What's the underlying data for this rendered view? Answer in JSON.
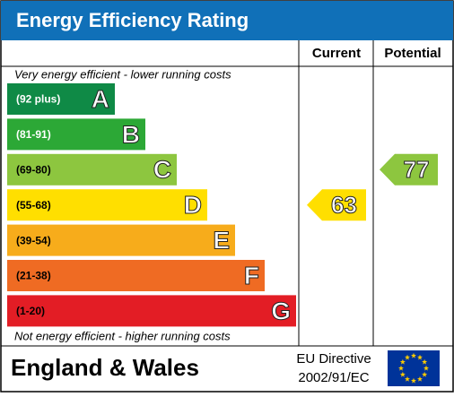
{
  "header": {
    "title": "Energy Efficiency Rating"
  },
  "columns": [
    "Current",
    "Potential"
  ],
  "top_note": "Very energy efficient - lower running costs",
  "bottom_note": "Not energy efficient - higher running costs",
  "bands": [
    {
      "range": "(92 plus)",
      "letter": "A",
      "color": "#0f8a46"
    },
    {
      "range": "(81-91)",
      "letter": "B",
      "color": "#2ca836"
    },
    {
      "range": "(69-80)",
      "letter": "C",
      "color": "#8dc63f"
    },
    {
      "range": "(55-68)",
      "letter": "D",
      "color": "#ffdf00"
    },
    {
      "range": "(39-54)",
      "letter": "E",
      "color": "#f7ac1b"
    },
    {
      "range": "(21-38)",
      "letter": "F",
      "color": "#ef6b23"
    },
    {
      "range": "(1-20)",
      "letter": "G",
      "color": "#e31d25"
    }
  ],
  "current": 63,
  "potential": 77,
  "footer": {
    "region": "England & Wales",
    "directive": "EU Directive",
    "code": "2002/91/EC"
  }
}
